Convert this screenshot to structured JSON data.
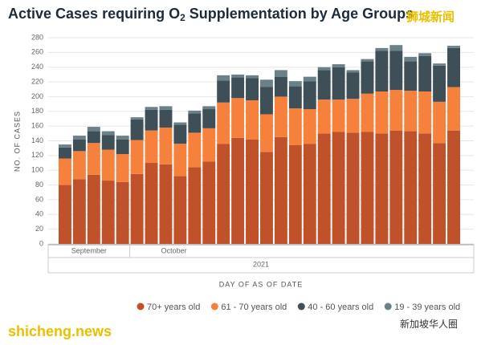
{
  "chart_data": {
    "type": "stacked_bar",
    "title": {
      "before": "Active Cases requiring O",
      "sub": "2",
      "after": " Supplementation by Age Groups"
    },
    "ylabel": "NO. OF CASES",
    "xlabel": "DAY OF AS OF DATE",
    "categories": [
      null,
      null,
      null,
      null,
      null,
      null,
      null,
      null,
      null,
      null,
      null,
      null,
      null,
      null,
      null,
      null,
      null,
      null,
      null,
      null,
      null,
      null,
      null,
      null,
      null,
      null,
      null,
      null
    ],
    "months": [
      {
        "label": "September",
        "start": 0,
        "end": 4
      },
      {
        "label": "October",
        "start": 5,
        "end": 27
      }
    ],
    "year": "2021",
    "ylim": [
      0,
      280
    ],
    "yticks": [
      0,
      20,
      40,
      60,
      80,
      100,
      120,
      140,
      160,
      180,
      200,
      220,
      240,
      260,
      280
    ],
    "series": [
      {
        "name": "70+ years old",
        "color": "#c0522b",
        "values": [
          80,
          88,
          94,
          86,
          84,
          95,
          110,
          108,
          92,
          104,
          112,
          136,
          144,
          142,
          125,
          145,
          134,
          136,
          150,
          152,
          151,
          152,
          150,
          154,
          153,
          150,
          137,
          154
        ]
      },
      {
        "name": "61 - 70 years old",
        "color": "#f5813c",
        "values": [
          36,
          38,
          43,
          42,
          38,
          46,
          44,
          50,
          44,
          47,
          45,
          56,
          54,
          53,
          51,
          55,
          50,
          47,
          46,
          44,
          46,
          52,
          57,
          55,
          55,
          57,
          56,
          59
        ]
      },
      {
        "name": "40 - 60 years old",
        "color": "#3e4f57",
        "values": [
          15,
          16,
          16,
          20,
          20,
          28,
          28,
          24,
          26,
          26,
          26,
          30,
          28,
          30,
          37,
          27,
          30,
          38,
          40,
          44,
          36,
          44,
          55,
          53,
          40,
          48,
          49,
          53
        ]
      },
      {
        "name": "19 - 39 years old",
        "color": "#6b818a",
        "values": [
          4,
          5,
          6,
          5,
          5,
          3,
          4,
          5,
          3,
          4,
          4,
          7,
          4,
          4,
          10,
          9,
          7,
          6,
          4,
          4,
          3,
          3,
          4,
          8,
          6,
          4,
          3,
          3
        ]
      }
    ],
    "watermarks": [
      "狮城新闻",
      "shicheng.news",
      "新加坡华人圈"
    ]
  }
}
